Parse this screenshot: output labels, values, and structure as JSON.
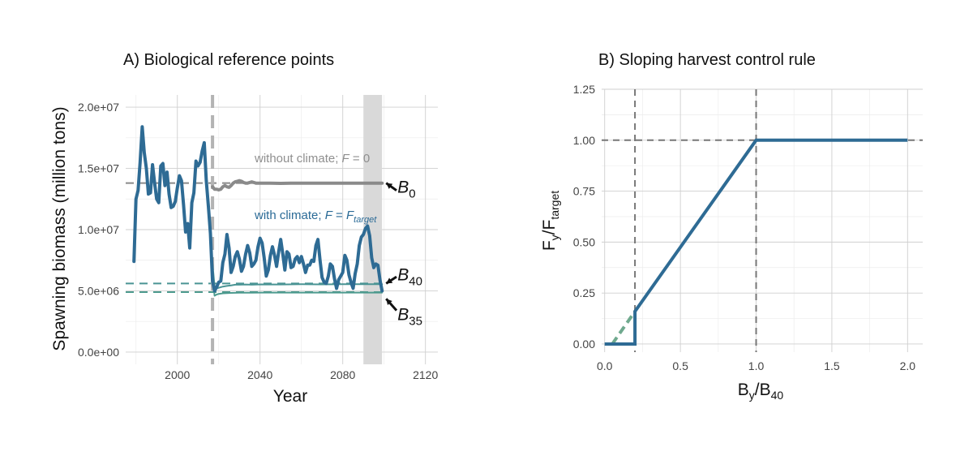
{
  "chart_data": [
    {
      "id": "A",
      "type": "line",
      "title": "A) Biological reference points",
      "xlabel": "Year",
      "ylabel": "Spawning biomass (million tons)",
      "xlim": [
        1975,
        2126
      ],
      "ylim": [
        -1000000,
        21000000
      ],
      "x_ticks": [
        2000,
        2040,
        2080,
        2120
      ],
      "y_ticks": [
        0,
        5000000,
        10000000,
        15000000,
        20000000
      ],
      "y_tick_labels": [
        "0.0e+00",
        "5.0e+06",
        "1.0e+07",
        "1.5e+07",
        "2.0e+07"
      ],
      "grid": true,
      "colors": {
        "climate": "#2e6b94",
        "no_climate": "#8a8a8a",
        "ref_teal": "#4d9a8e",
        "ref_b40": "#4a9494",
        "projection_shade": "#d9d9d9",
        "vline": "#b3b3b3"
      },
      "vertical_line_x": 2017,
      "shaded_region_x": [
        2090,
        2099
      ],
      "series": [
        {
          "key": "climate",
          "x": [
            1979,
            1980,
            1981,
            1982,
            1983,
            1984,
            1985,
            1986,
            1987,
            1988,
            1989,
            1990,
            1991,
            1992,
            1993,
            1994,
            1995,
            1996,
            1997,
            1998,
            1999,
            2000,
            2001,
            2002,
            2003,
            2004,
            2005,
            2006,
            2007,
            2008,
            2009,
            2010,
            2011,
            2012,
            2013,
            2014,
            2015,
            2016,
            2017,
            2018,
            2019,
            2020,
            2021,
            2022,
            2023,
            2024,
            2025,
            2026,
            2027,
            2028,
            2029,
            2030,
            2031,
            2032,
            2033,
            2034,
            2035,
            2036,
            2037,
            2038,
            2039,
            2040,
            2041,
            2042,
            2043,
            2044,
            2045,
            2046,
            2047,
            2048,
            2049,
            2050,
            2051,
            2052,
            2053,
            2054,
            2055,
            2056,
            2057,
            2058,
            2059,
            2060,
            2061,
            2062,
            2063,
            2064,
            2065,
            2066,
            2067,
            2068,
            2069,
            2070,
            2071,
            2072,
            2073,
            2074,
            2075,
            2076,
            2077,
            2078,
            2079,
            2080,
            2081,
            2082,
            2083,
            2084,
            2085,
            2086,
            2087,
            2088,
            2089,
            2090,
            2091,
            2092,
            2093,
            2094,
            2095,
            2096,
            2097,
            2098,
            2099
          ],
          "y": [
            7400000,
            12500000,
            13200000,
            15500000,
            18400000,
            16300000,
            15000000,
            12900000,
            13000000,
            15300000,
            13800000,
            12500000,
            12200000,
            15200000,
            15400000,
            13600000,
            14700000,
            12900000,
            11800000,
            11900000,
            12300000,
            13400000,
            14400000,
            14000000,
            12000000,
            9800000,
            10500000,
            8500000,
            12200000,
            13000000,
            15600000,
            15200000,
            15500000,
            16400000,
            17100000,
            14000000,
            11900000,
            9700000,
            5800000,
            5000000,
            5300000,
            5700000,
            5800000,
            7300000,
            8000000,
            9600000,
            8500000,
            6500000,
            7000000,
            7800000,
            8200000,
            7600000,
            6600000,
            7000000,
            8000000,
            8700000,
            8100000,
            7000000,
            7200000,
            7500000,
            8600000,
            9300000,
            8900000,
            7700000,
            6200000,
            6700000,
            7900000,
            8600000,
            7900000,
            7000000,
            8200000,
            9200000,
            8000000,
            6700000,
            8200000,
            8000000,
            6900000,
            7000000,
            7600000,
            7800000,
            7300000,
            7800000,
            7200000,
            6500000,
            7100000,
            7100000,
            7500000,
            7400000,
            8700000,
            9200000,
            7500000,
            6100000,
            5700000,
            5600000,
            6200000,
            7200000,
            7000000,
            6000000,
            5200000,
            5900000,
            6200000,
            6500000,
            7900000,
            7500000,
            6300000,
            5700000,
            5200000,
            6400000,
            7200000,
            8700000,
            9400000,
            9600000,
            10100000,
            10300000,
            9500000,
            7700000,
            6900000,
            7200000,
            7100000,
            5900000,
            5000000
          ],
          "width": 4
        },
        {
          "key": "no_climate",
          "x": [
            2017,
            2018,
            2019,
            2020,
            2021,
            2022,
            2023,
            2024,
            2025,
            2026,
            2027,
            2028,
            2029,
            2030,
            2031,
            2032,
            2033,
            2034,
            2035,
            2036,
            2037,
            2038,
            2039,
            2040,
            2045,
            2050,
            2055,
            2060,
            2065,
            2070,
            2075,
            2080,
            2085,
            2090,
            2095,
            2099
          ],
          "y": [
            13500000,
            13300000,
            13300000,
            13250000,
            13300000,
            13500000,
            13600000,
            13500000,
            13450000,
            13600000,
            13800000,
            13900000,
            13950000,
            14000000,
            13950000,
            13850000,
            13800000,
            13800000,
            13850000,
            13900000,
            13850000,
            13800000,
            13800000,
            13800000,
            13800000,
            13780000,
            13800000,
            13800000,
            13800000,
            13800000,
            13800000,
            13800000,
            13800000,
            13800000,
            13800000,
            13800000
          ],
          "width": 4
        },
        {
          "key": "b40_traj",
          "x": [
            2017,
            2018,
            2019,
            2020,
            2022,
            2024,
            2026,
            2028,
            2030,
            2033,
            2036,
            2040,
            2050,
            2060,
            2070,
            2080,
            2090,
            2099
          ],
          "y": [
            7200000,
            5400000,
            5200000,
            5250000,
            5350000,
            5400000,
            5450000,
            5500000,
            5500000,
            5520000,
            5500000,
            5530000,
            5520000,
            5540000,
            5530000,
            5540000,
            5540000,
            5540000
          ],
          "width": 2
        },
        {
          "key": "b35_traj",
          "x": [
            2017,
            2018,
            2019,
            2020,
            2022,
            2024,
            2026,
            2028,
            2030,
            2033,
            2036,
            2040,
            2050,
            2060,
            2070,
            2080,
            2090,
            2099
          ],
          "y": [
            6300000,
            4600000,
            4700000,
            4750000,
            4800000,
            4820000,
            4830000,
            4840000,
            4850000,
            4850000,
            4850000,
            4860000,
            4860000,
            4860000,
            4860000,
            4860000,
            4860000,
            4860000
          ],
          "width": 2
        }
      ],
      "reference_lines": [
        {
          "key": "B0",
          "y": 13800000,
          "color": "#8a8a8a",
          "base": "B",
          "sub": "0"
        },
        {
          "key": "B40",
          "y": 5600000,
          "color": "#4a9494",
          "base": "B",
          "sub": "40"
        },
        {
          "key": "B35",
          "y": 4900000,
          "color": "#4d9a8e",
          "base": "B",
          "sub": "35"
        }
      ],
      "annotations": {
        "without_climate": "without climate; ",
        "without_climate_F": "F",
        "without_climate_eq": " = 0",
        "with_climate": "with climate; ",
        "with_climate_F": "F",
        "with_climate_eq": " = ",
        "with_climate_Ftarget": "F",
        "with_climate_Ftarget_sub": "target"
      }
    },
    {
      "id": "B",
      "type": "line",
      "title": "B) Sloping harvest control rule",
      "xlabel_base": "B",
      "xlabel_sub1": "y",
      "xlabel_slash": "/B",
      "xlabel_sub2": "40",
      "ylabel_base": "F",
      "ylabel_sub1": "y",
      "ylabel_slash": "/F",
      "ylabel_sub2": "target",
      "xlim": [
        -0.02,
        2.1
      ],
      "ylim": [
        -0.04,
        1.25
      ],
      "x_ticks": [
        0.0,
        0.5,
        1.0,
        1.5,
        2.0
      ],
      "x_tick_labels": [
        "0.0",
        "0.5",
        "1.0",
        "1.5",
        "2.0"
      ],
      "y_ticks": [
        0.0,
        0.25,
        0.5,
        0.75,
        1.0,
        1.25
      ],
      "y_tick_labels": [
        "0.00",
        "0.25",
        "0.50",
        "0.75",
        "1.00",
        "1.25"
      ],
      "grid": true,
      "colors": {
        "rule": "#2e6b94",
        "alt_rule": "#6fa98e",
        "ref": "#777777"
      },
      "ref_vlines": [
        0.2,
        1.0
      ],
      "ref_hline": 1.0,
      "series": [
        {
          "key": "hcr",
          "x": [
            0.0,
            0.2,
            0.2,
            1.0,
            2.0
          ],
          "y": [
            0.0,
            0.0,
            0.16,
            1.0,
            1.0
          ]
        },
        {
          "key": "hcr_alt",
          "x": [
            0.05,
            0.2
          ],
          "y": [
            0.0,
            0.16
          ]
        }
      ]
    }
  ]
}
